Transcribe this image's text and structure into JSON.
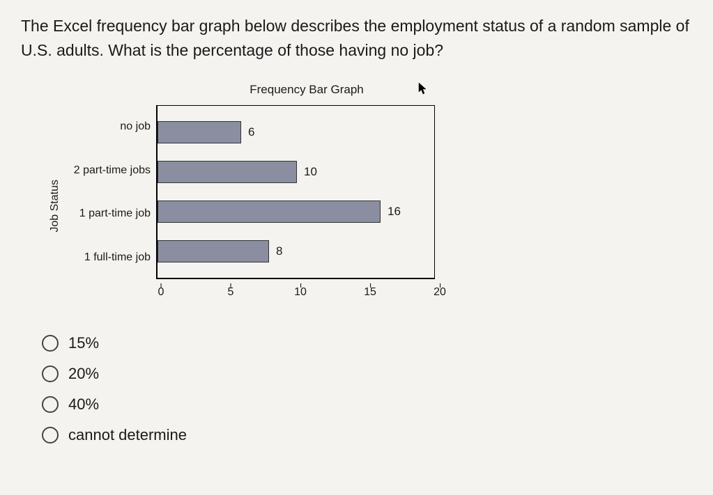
{
  "question": "The Excel frequency bar graph below describes the employment status of a random sample of U.S. adults. What is the percentage of those having no job?",
  "chart": {
    "type": "bar",
    "orientation": "horizontal",
    "title": "Frequency Bar Graph",
    "y_axis_label": "Job Status",
    "categories": [
      "no job",
      "2 part-time jobs",
      "1 part-time job",
      "1 full-time job"
    ],
    "values": [
      6,
      10,
      16,
      8
    ],
    "value_labels": [
      "6",
      "10",
      "16",
      "8"
    ],
    "bar_color": "#8a8ea0",
    "bar_border_color": "#333333",
    "xlim": [
      0,
      20
    ],
    "xticks": [
      0,
      5,
      10,
      15,
      20
    ],
    "xtick_labels": [
      "0",
      "5",
      "10",
      "15",
      "20"
    ],
    "background_color": "#f5f3ef",
    "border_color": "#000000",
    "title_fontsize": 17,
    "tick_fontsize": 16,
    "label_fontsize": 16
  },
  "options": [
    {
      "label": "15%",
      "selected": false
    },
    {
      "label": "20%",
      "selected": false
    },
    {
      "label": "40%",
      "selected": false
    },
    {
      "label": "cannot determine",
      "selected": false
    }
  ]
}
